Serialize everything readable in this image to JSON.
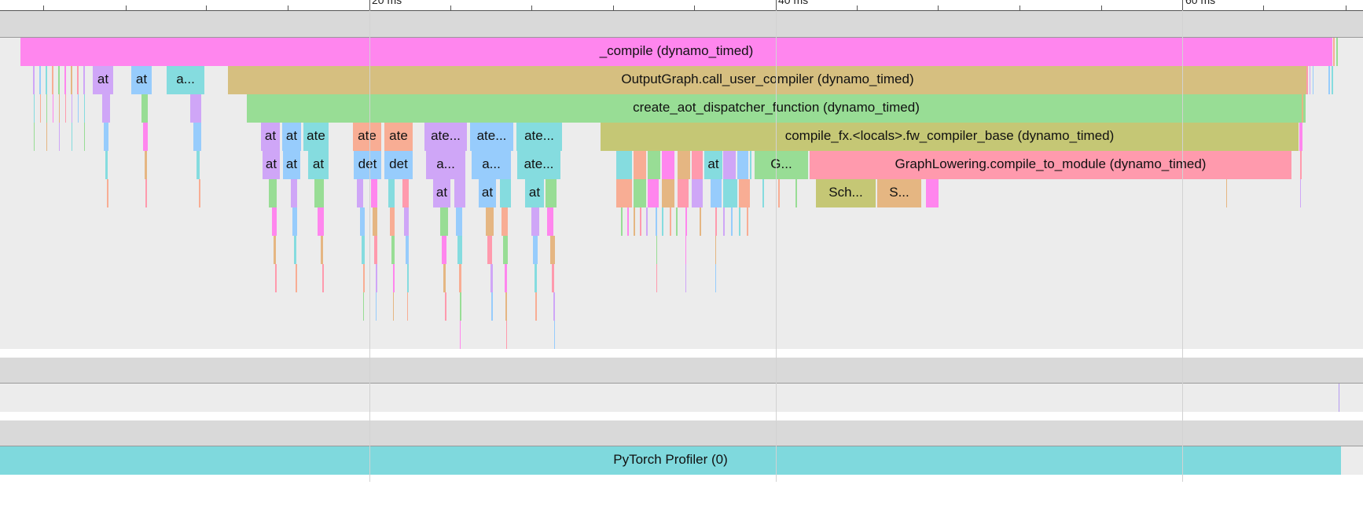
{
  "timeline": {
    "ruler_labels": [
      "20 ms",
      "40 ms",
      "60 ms"
    ]
  },
  "colors": {
    "pink": "#ff86ee",
    "tan": "#d6bf80",
    "green": "#98dd95",
    "olive": "#c5c775",
    "rose": "#ff9aad",
    "purple": "#cfa6f7",
    "blue": "#97ccfc",
    "teal": "#85dcdf",
    "salmon": "#f8ad94",
    "gold": "#e5b682",
    "cyan": "#7fd9dd"
  },
  "tracks": {
    "main": {
      "slices": [
        {
          "label": "_compile (dynamo_timed)",
          "color": "pink"
        },
        {
          "label": "OutputGraph.call_user_compiler (dynamo_timed)",
          "color": "tan"
        },
        {
          "label": "create_aot_dispatcher_function (dynamo_timed)",
          "color": "green"
        },
        {
          "label": "compile_fx.<locals>.fw_compiler_base (dynamo_timed)",
          "color": "olive"
        },
        {
          "label": "GraphLowering.compile_to_module (dynamo_timed)",
          "color": "rose"
        },
        {
          "label": "at",
          "color": "purple"
        },
        {
          "label": "at",
          "color": "blue"
        },
        {
          "label": "a...",
          "color": "teal"
        },
        {
          "label": "at",
          "color": "purple"
        },
        {
          "label": "at",
          "color": "blue"
        },
        {
          "label": "ate",
          "color": "teal"
        },
        {
          "label": "ate",
          "color": "salmon"
        },
        {
          "label": "ate",
          "color": "salmon"
        },
        {
          "label": "ate...",
          "color": "purple"
        },
        {
          "label": "ate...",
          "color": "blue"
        },
        {
          "label": "ate...",
          "color": "teal"
        },
        {
          "label": "at",
          "color": "purple"
        },
        {
          "label": "at",
          "color": "blue"
        },
        {
          "label": "at",
          "color": "teal"
        },
        {
          "label": "det",
          "color": "blue"
        },
        {
          "label": "det",
          "color": "blue"
        },
        {
          "label": "a...",
          "color": "purple"
        },
        {
          "label": "a...",
          "color": "blue"
        },
        {
          "label": "ate...",
          "color": "teal"
        },
        {
          "label": "at",
          "color": "teal"
        },
        {
          "label": "G...",
          "color": "green"
        },
        {
          "label": "at",
          "color": "purple"
        },
        {
          "label": "at",
          "color": "blue"
        },
        {
          "label": "at",
          "color": "teal"
        },
        {
          "label": "Sch...",
          "color": "olive"
        },
        {
          "label": "S...",
          "color": "gold"
        }
      ]
    },
    "profiler": {
      "label": "PyTorch Profiler (0)",
      "color": "cyan"
    }
  }
}
